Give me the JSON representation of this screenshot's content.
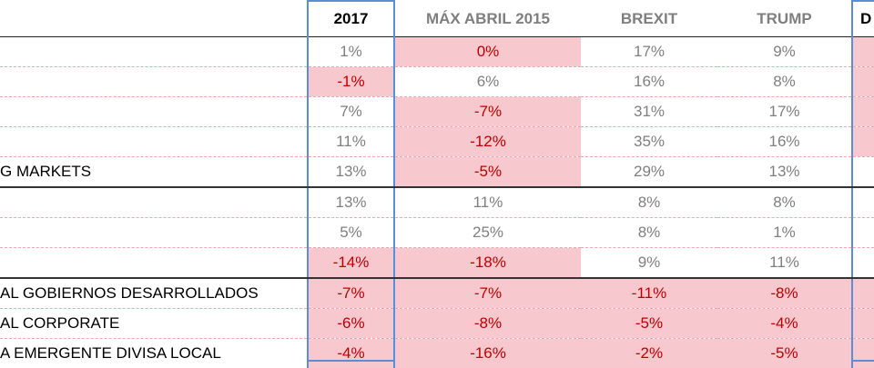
{
  "headers": {
    "col_2017": "2017",
    "col_max": "MÁX ABRIL 2015",
    "col_brexit": "BREXIT",
    "col_trump": "TRUMP",
    "col_next": "D"
  },
  "rows": [
    {
      "label": "",
      "v2017": "1%",
      "vmax": "0%",
      "vbrexit": "17%",
      "vtrump": "9%"
    },
    {
      "label": "",
      "v2017": "-1%",
      "vmax": "6%",
      "vbrexit": "16%",
      "vtrump": "8%"
    },
    {
      "label": "",
      "v2017": "7%",
      "vmax": "-7%",
      "vbrexit": "31%",
      "vtrump": "17%"
    },
    {
      "label": "",
      "v2017": "11%",
      "vmax": "-12%",
      "vbrexit": "35%",
      "vtrump": "16%"
    },
    {
      "label": "G MARKETS",
      "v2017": "13%",
      "vmax": "-5%",
      "vbrexit": "29%",
      "vtrump": "13%"
    },
    {
      "label": "",
      "v2017": "13%",
      "vmax": "11%",
      "vbrexit": "8%",
      "vtrump": "8%"
    },
    {
      "label": "",
      "v2017": "5%",
      "vmax": "25%",
      "vbrexit": "8%",
      "vtrump": "1%"
    },
    {
      "label": "",
      "v2017": "-14%",
      "vmax": "-18%",
      "vbrexit": "9%",
      "vtrump": "11%"
    },
    {
      "label": "AL GOBIERNOS DESARROLLADOS",
      "v2017": "-7%",
      "vmax": "-7%",
      "vbrexit": "-11%",
      "vtrump": "-8%"
    },
    {
      "label": "AL CORPORATE",
      "v2017": "-6%",
      "vmax": "-8%",
      "vbrexit": "-5%",
      "vtrump": "-4%"
    },
    {
      "label": "A EMERGENTE DIVISA LOCAL",
      "v2017": "-4%",
      "vmax": "-16%",
      "vbrexit": "-2%",
      "vtrump": "-5%"
    }
  ]
}
